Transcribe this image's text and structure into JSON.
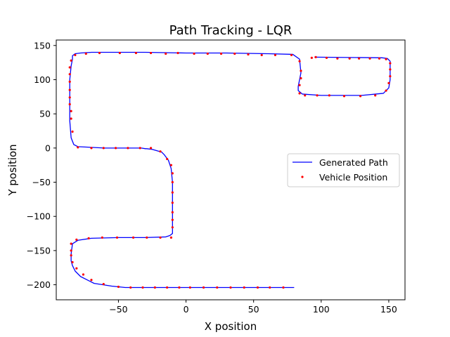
{
  "chart_data": {
    "type": "line",
    "title": "Path Tracking - LQR",
    "xlabel": "X position",
    "ylabel": "Y position",
    "xlim": [
      -96,
      162
    ],
    "ylim": [
      -222,
      158
    ],
    "xticks": [
      -50,
      0,
      50,
      100,
      150
    ],
    "xtick_labels": [
      "−50",
      "0",
      "50",
      "100",
      "150"
    ],
    "yticks": [
      -200,
      -150,
      -100,
      -50,
      0,
      50,
      100,
      150
    ],
    "ytick_labels": [
      "−200",
      "−150",
      "−100",
      "−50",
      "0",
      "50",
      "100",
      "150"
    ],
    "grid": false,
    "legend_position": "center-right",
    "series": [
      {
        "name": "Generated Path",
        "style": "line",
        "color": "#0000ff",
        "x": [
          95,
          145,
          149,
          151,
          151,
          150,
          146,
          130,
          100,
          86,
          83,
          83,
          84,
          85,
          84,
          79,
          60,
          30,
          0,
          -30,
          -60,
          -70,
          -78,
          -82,
          -84,
          -84,
          -85,
          -86,
          -86,
          -85,
          -83,
          -80,
          -60,
          -40,
          -33,
          -30,
          -29,
          -25,
          -18,
          -16,
          -13,
          -11,
          -10,
          -10,
          -10,
          -10,
          -10,
          -12,
          -15,
          -30,
          -50,
          -70,
          -80,
          -84,
          -85,
          -85,
          -84,
          -82,
          -78,
          -68,
          -55,
          -45,
          -30,
          0,
          30,
          60,
          80
        ],
        "y": [
          133,
          132,
          131,
          127,
          100,
          88,
          80,
          77,
          77,
          79,
          84,
          90,
          100,
          110,
          130,
          137,
          138,
          139,
          139,
          140,
          140,
          140,
          139,
          138,
          135,
          130,
          120,
          100,
          40,
          15,
          5,
          2,
          0,
          0,
          0,
          -1,
          -1,
          -2,
          -6,
          -10,
          -18,
          -30,
          -50,
          -80,
          -110,
          -120,
          -125,
          -128,
          -130,
          -131,
          -131,
          -132,
          -135,
          -140,
          -155,
          -165,
          -172,
          -180,
          -188,
          -198,
          -202,
          -204,
          -204,
          -204,
          -204,
          -204,
          -204
        ]
      },
      {
        "name": "Vehicle Position",
        "style": "scatter",
        "color": "#ff0000",
        "x": [
          93,
          96,
          104,
          112,
          121,
          128,
          136,
          143,
          148,
          151,
          151,
          151,
          150,
          148,
          140,
          129,
          117,
          106,
          97,
          88,
          84,
          84,
          85,
          85,
          84,
          78,
          66,
          56,
          46,
          36,
          26,
          16,
          6,
          -6,
          -15,
          -26,
          -37,
          -49,
          -64,
          -74,
          -82,
          -85,
          -86,
          -86,
          -86,
          -86,
          -86,
          -86,
          -85,
          -85,
          -84,
          -80,
          -70,
          -61,
          -52,
          -43,
          -34,
          -26,
          -19,
          -14,
          -11,
          -10,
          -10,
          -10,
          -10,
          -10,
          -10,
          -10,
          -11,
          -19,
          -29,
          -39,
          -51,
          -62,
          -72,
          -81,
          -85,
          -85,
          -85,
          -84,
          -81,
          -76,
          -70,
          -61,
          -50,
          -41,
          -32,
          -23,
          -14,
          -5,
          3,
          13,
          23,
          33,
          43,
          53,
          62,
          72
        ],
        "y": [
          132,
          133,
          132,
          131,
          131,
          131,
          131,
          131,
          130,
          124,
          115,
          105,
          95,
          84,
          77,
          76,
          76,
          77,
          77,
          77,
          80,
          92,
          102,
          113,
          127,
          136,
          136,
          136,
          137,
          138,
          138,
          138,
          138,
          139,
          138,
          139,
          139,
          139,
          139,
          138,
          136,
          128,
          118,
          108,
          97,
          85,
          74,
          64,
          54,
          43,
          24,
          1,
          0,
          0,
          0,
          0,
          0,
          0,
          -5,
          -16,
          -25,
          -37,
          -50,
          -65,
          -80,
          -94,
          -105,
          -116,
          -131,
          -131,
          -131,
          -131,
          -131,
          -131,
          -132,
          -134,
          -140,
          -150,
          -157,
          -167,
          -176,
          -185,
          -193,
          -199,
          -203,
          -204,
          -204,
          -204,
          -204,
          -204,
          -204,
          -204,
          -204,
          -204,
          -204,
          -204,
          -204,
          -204
        ]
      }
    ]
  }
}
